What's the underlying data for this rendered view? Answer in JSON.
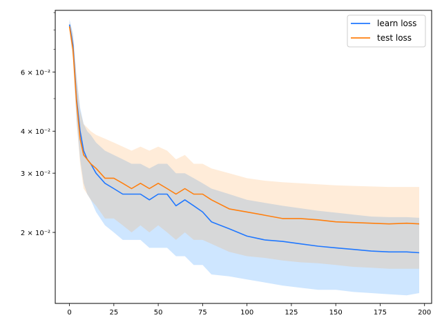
{
  "chart_data": {
    "type": "line",
    "title": "",
    "xlabel": "",
    "ylabel": "",
    "xlim": [
      -8,
      204
    ],
    "ylim": [
      0.0123,
      0.0915
    ],
    "yscale": "log",
    "grid": false,
    "legend_position": "top-right",
    "x_ticks": [
      0,
      25,
      50,
      75,
      100,
      125,
      150,
      175,
      200
    ],
    "x_tick_labels": [
      "0",
      "25",
      "50",
      "75",
      "100",
      "125",
      "150",
      "175",
      "200"
    ],
    "y_ticks": [
      0.02,
      0.03,
      0.04,
      0.06
    ],
    "y_tick_labels": [
      "2 × 10⁻²",
      "3 × 10⁻²",
      "4 × 10⁻²",
      "6 × 10⁻²"
    ],
    "x": [
      0,
      2,
      4,
      6,
      8,
      10,
      12,
      15,
      20,
      25,
      30,
      35,
      40,
      45,
      50,
      55,
      60,
      65,
      70,
      75,
      80,
      90,
      100,
      110,
      120,
      130,
      140,
      150,
      160,
      170,
      180,
      190,
      197
    ],
    "series": [
      {
        "name": "learn loss",
        "color": "#1f77ff",
        "band_color": "#1f8fff",
        "values": [
          0.083,
          0.072,
          0.05,
          0.04,
          0.035,
          0.033,
          0.032,
          0.03,
          0.028,
          0.027,
          0.026,
          0.026,
          0.026,
          0.025,
          0.026,
          0.026,
          0.024,
          0.025,
          0.024,
          0.023,
          0.0215,
          0.0205,
          0.0195,
          0.019,
          0.0188,
          0.0185,
          0.0182,
          0.018,
          0.0178,
          0.0176,
          0.0175,
          0.0175,
          0.0174
        ],
        "lower": [
          0.08,
          0.066,
          0.043,
          0.033,
          0.028,
          0.026,
          0.025,
          0.023,
          0.021,
          0.02,
          0.019,
          0.019,
          0.019,
          0.018,
          0.018,
          0.018,
          0.017,
          0.017,
          0.016,
          0.016,
          0.015,
          0.0148,
          0.0145,
          0.0142,
          0.0139,
          0.0137,
          0.0135,
          0.0135,
          0.0133,
          0.0132,
          0.0131,
          0.013,
          0.0132
        ],
        "upper": [
          0.086,
          0.078,
          0.058,
          0.047,
          0.042,
          0.04,
          0.039,
          0.037,
          0.035,
          0.034,
          0.033,
          0.032,
          0.032,
          0.031,
          0.032,
          0.032,
          0.03,
          0.03,
          0.029,
          0.028,
          0.027,
          0.026,
          0.025,
          0.0245,
          0.024,
          0.0236,
          0.0232,
          0.0229,
          0.0226,
          0.0223,
          0.0222,
          0.0222,
          0.0221
        ]
      },
      {
        "name": "test loss",
        "color": "#ff7f0e",
        "band_color": "#ffa040",
        "values": [
          0.082,
          0.07,
          0.049,
          0.038,
          0.034,
          0.033,
          0.032,
          0.031,
          0.029,
          0.029,
          0.028,
          0.027,
          0.028,
          0.027,
          0.028,
          0.027,
          0.026,
          0.027,
          0.026,
          0.026,
          0.025,
          0.0235,
          0.023,
          0.0225,
          0.022,
          0.022,
          0.0218,
          0.0215,
          0.0214,
          0.0213,
          0.0212,
          0.0213,
          0.0212
        ],
        "lower": [
          0.08,
          0.065,
          0.043,
          0.032,
          0.027,
          0.026,
          0.025,
          0.024,
          0.022,
          0.022,
          0.021,
          0.02,
          0.021,
          0.02,
          0.021,
          0.02,
          0.019,
          0.02,
          0.019,
          0.019,
          0.0185,
          0.0175,
          0.017,
          0.0168,
          0.0165,
          0.0163,
          0.0162,
          0.016,
          0.0158,
          0.0157,
          0.0156,
          0.0156,
          0.0156
        ],
        "upper": [
          0.085,
          0.077,
          0.058,
          0.046,
          0.042,
          0.041,
          0.04,
          0.039,
          0.038,
          0.037,
          0.036,
          0.035,
          0.036,
          0.035,
          0.036,
          0.035,
          0.033,
          0.034,
          0.032,
          0.032,
          0.031,
          0.03,
          0.029,
          0.0285,
          0.0282,
          0.028,
          0.0278,
          0.0276,
          0.0275,
          0.0274,
          0.0273,
          0.0273,
          0.0273
        ]
      }
    ]
  }
}
